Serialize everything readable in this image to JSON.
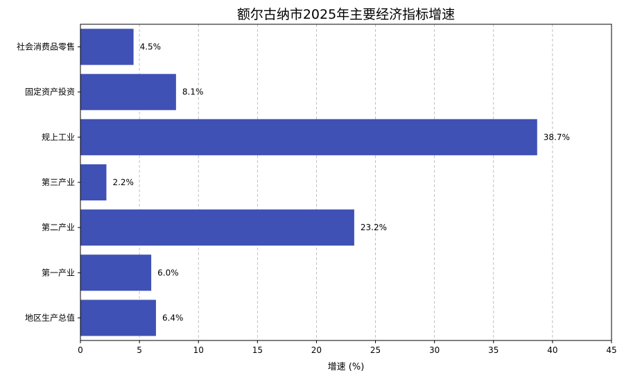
{
  "chart_data": {
    "type": "bar",
    "orientation": "horizontal",
    "title": "额尔古纳市2025年主要经济指标增速",
    "xlabel": "增速 (%)",
    "ylabel": "",
    "xlim": [
      0,
      45
    ],
    "xticks": [
      0,
      5,
      10,
      15,
      20,
      25,
      30,
      35,
      40,
      45
    ],
    "grid": "x-dashed",
    "bar_color": "#3f51b5",
    "categories": [
      "地区生产总值",
      "第一产业",
      "第二产业",
      "第三产业",
      "规上工业",
      "固定资产投资",
      "社会消费品零售"
    ],
    "values": [
      6.4,
      6.0,
      23.2,
      2.2,
      38.7,
      8.1,
      4.5
    ],
    "value_labels": [
      "6.4%",
      "6.0%",
      "23.2%",
      "2.2%",
      "38.7%",
      "8.1%",
      "4.5%"
    ]
  }
}
